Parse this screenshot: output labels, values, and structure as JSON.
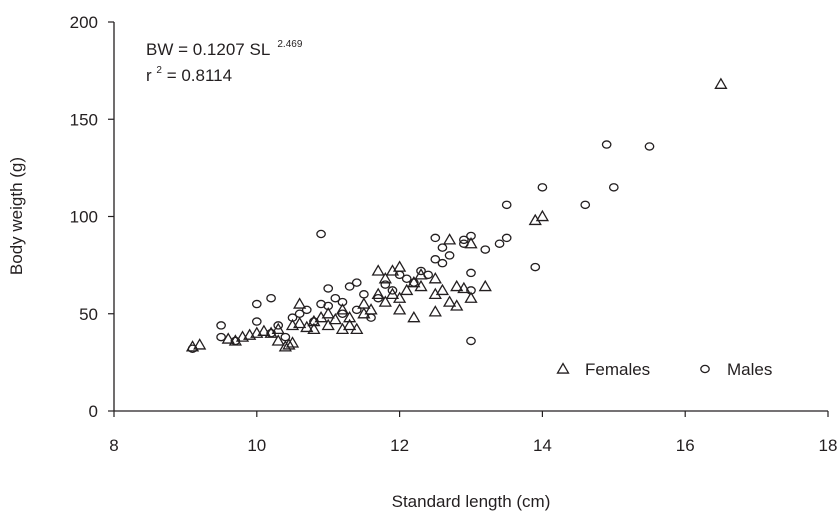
{
  "chart_data": {
    "type": "scatter",
    "title": "",
    "xlabel": "Standard length (cm)",
    "ylabel": "Body weigth (g)",
    "xlim": [
      8,
      18
    ],
    "ylim": [
      0,
      200
    ],
    "xticks": [
      8,
      10,
      12,
      14,
      16,
      18
    ],
    "yticks": [
      0,
      50,
      100,
      150,
      200
    ],
    "grid": false,
    "legend_position": "bottom-right",
    "annotations": {
      "equation_prefix": "BW = 0.1207 SL",
      "equation_exponent": "2.469",
      "r2_prefix": "r",
      "r2_exponent": "2",
      "r2_suffix": " = 0.8114"
    },
    "series": [
      {
        "name": "Females",
        "marker": "triangle",
        "points": [
          [
            9.1,
            33
          ],
          [
            9.2,
            34
          ],
          [
            9.6,
            37
          ],
          [
            9.7,
            36
          ],
          [
            9.8,
            38
          ],
          [
            9.9,
            39
          ],
          [
            10.0,
            40
          ],
          [
            10.1,
            41
          ],
          [
            10.2,
            40
          ],
          [
            10.3,
            36
          ],
          [
            10.3,
            42
          ],
          [
            10.4,
            33
          ],
          [
            10.45,
            34
          ],
          [
            10.5,
            35
          ],
          [
            10.5,
            44
          ],
          [
            10.6,
            45
          ],
          [
            10.6,
            55
          ],
          [
            10.7,
            43
          ],
          [
            10.8,
            46
          ],
          [
            10.8,
            42
          ],
          [
            10.9,
            48
          ],
          [
            11.0,
            44
          ],
          [
            11.0,
            50
          ],
          [
            11.1,
            47
          ],
          [
            11.2,
            42
          ],
          [
            11.2,
            52
          ],
          [
            11.3,
            44
          ],
          [
            11.3,
            48
          ],
          [
            11.4,
            42
          ],
          [
            11.5,
            50
          ],
          [
            11.5,
            55
          ],
          [
            11.6,
            52
          ],
          [
            11.7,
            60
          ],
          [
            11.7,
            72
          ],
          [
            11.8,
            56
          ],
          [
            11.8,
            68
          ],
          [
            11.9,
            72
          ],
          [
            11.9,
            60
          ],
          [
            12.0,
            58
          ],
          [
            12.0,
            74
          ],
          [
            12.0,
            52
          ],
          [
            12.1,
            62
          ],
          [
            12.2,
            66
          ],
          [
            12.2,
            48
          ],
          [
            12.3,
            64
          ],
          [
            12.3,
            70
          ],
          [
            12.5,
            51
          ],
          [
            12.5,
            60
          ],
          [
            12.5,
            68
          ],
          [
            12.6,
            62
          ],
          [
            12.7,
            56
          ],
          [
            12.7,
            88
          ],
          [
            12.8,
            54
          ],
          [
            12.8,
            64
          ],
          [
            12.9,
            63
          ],
          [
            13.0,
            58
          ],
          [
            13.0,
            86
          ],
          [
            13.2,
            64
          ],
          [
            13.9,
            98
          ],
          [
            14.0,
            100
          ],
          [
            16.5,
            168
          ]
        ]
      },
      {
        "name": "Males",
        "marker": "circle",
        "points": [
          [
            9.1,
            32
          ],
          [
            9.5,
            44
          ],
          [
            9.5,
            38
          ],
          [
            9.7,
            36
          ],
          [
            10.0,
            55
          ],
          [
            10.0,
            46
          ],
          [
            10.2,
            58
          ],
          [
            10.2,
            40
          ],
          [
            10.3,
            44
          ],
          [
            10.4,
            38
          ],
          [
            10.5,
            48
          ],
          [
            10.6,
            50
          ],
          [
            10.7,
            52
          ],
          [
            10.8,
            46
          ],
          [
            10.9,
            91
          ],
          [
            10.9,
            55
          ],
          [
            11.0,
            54
          ],
          [
            11.0,
            63
          ],
          [
            11.1,
            58
          ],
          [
            11.2,
            50
          ],
          [
            11.2,
            56
          ],
          [
            11.3,
            64
          ],
          [
            11.4,
            52
          ],
          [
            11.4,
            66
          ],
          [
            11.5,
            60
          ],
          [
            11.6,
            48
          ],
          [
            11.7,
            58
          ],
          [
            11.8,
            65
          ],
          [
            11.9,
            62
          ],
          [
            12.0,
            70
          ],
          [
            12.1,
            68
          ],
          [
            12.2,
            66
          ],
          [
            12.3,
            72
          ],
          [
            12.4,
            70
          ],
          [
            12.5,
            89
          ],
          [
            12.5,
            78
          ],
          [
            12.6,
            76
          ],
          [
            12.6,
            84
          ],
          [
            12.7,
            80
          ],
          [
            12.9,
            86
          ],
          [
            12.9,
            88
          ],
          [
            13.0,
            90
          ],
          [
            13.0,
            71
          ],
          [
            13.0,
            62
          ],
          [
            13.0,
            36
          ],
          [
            13.2,
            83
          ],
          [
            13.4,
            86
          ],
          [
            13.5,
            89
          ],
          [
            13.5,
            106
          ],
          [
            13.9,
            74
          ],
          [
            14.0,
            115
          ],
          [
            14.6,
            106
          ],
          [
            14.9,
            137
          ],
          [
            15.0,
            115
          ],
          [
            15.5,
            136
          ]
        ]
      }
    ]
  }
}
